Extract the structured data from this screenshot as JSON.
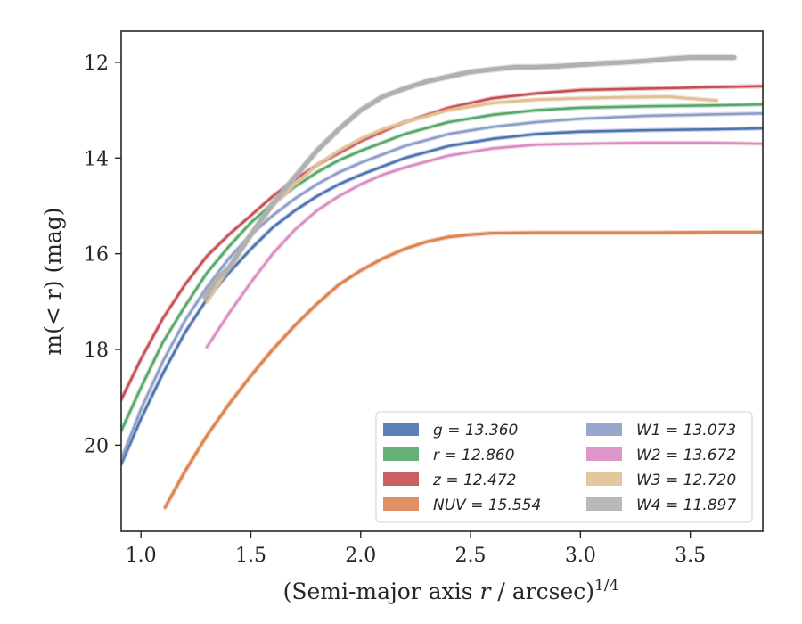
{
  "chart_data": {
    "type": "line",
    "xlabel": "(Semi-major axis r / arcsec)",
    "xlabel_italic_var": "r",
    "xlabel_exponent": "1/4",
    "ylabel": "m(< r) (mag)",
    "xlim": [
      0.91,
      3.83
    ],
    "ylim": [
      21.8,
      11.35
    ],
    "y_inverted": true,
    "x_ticks": [
      1.0,
      1.5,
      2.0,
      2.5,
      3.0,
      3.5
    ],
    "x_tick_labels": [
      "1.0",
      "1.5",
      "2.0",
      "2.5",
      "3.0",
      "3.5"
    ],
    "y_ticks": [
      12,
      14,
      16,
      18,
      20
    ],
    "y_tick_labels": [
      "12",
      "14",
      "16",
      "18",
      "20"
    ],
    "grid": false,
    "legend_position": "lower-right",
    "legend_columns": 2,
    "series": [
      {
        "name": "g = 13.360",
        "var": "g",
        "value": "13.360",
        "color": "#4c72b0",
        "width": 2.5,
        "x": [
          0.91,
          1.0,
          1.1,
          1.2,
          1.3,
          1.4,
          1.5,
          1.6,
          1.7,
          1.8,
          1.9,
          2.0,
          2.2,
          2.4,
          2.6,
          2.8,
          3.0,
          3.3,
          3.6,
          3.83
        ],
        "y": [
          20.4,
          19.45,
          18.5,
          17.65,
          16.95,
          16.4,
          15.9,
          15.45,
          15.1,
          14.8,
          14.55,
          14.35,
          14.0,
          13.75,
          13.6,
          13.5,
          13.45,
          13.42,
          13.4,
          13.38
        ]
      },
      {
        "name": "r = 12.860",
        "var": "r",
        "value": "12.860",
        "color": "#55a868",
        "width": 2.5,
        "x": [
          0.91,
          1.0,
          1.1,
          1.2,
          1.3,
          1.4,
          1.5,
          1.6,
          1.7,
          1.8,
          1.9,
          2.0,
          2.2,
          2.4,
          2.6,
          2.8,
          3.0,
          3.3,
          3.6,
          3.83
        ],
        "y": [
          19.7,
          18.8,
          17.85,
          17.1,
          16.4,
          15.85,
          15.35,
          14.95,
          14.6,
          14.3,
          14.05,
          13.85,
          13.5,
          13.25,
          13.1,
          13.0,
          12.95,
          12.92,
          12.9,
          12.88
        ]
      },
      {
        "name": "z = 12.472",
        "var": "z",
        "value": "12.472",
        "color": "#c44e52",
        "width": 2.5,
        "x": [
          0.91,
          1.0,
          1.1,
          1.2,
          1.3,
          1.4,
          1.5,
          1.6,
          1.7,
          1.8,
          1.9,
          2.0,
          2.2,
          2.4,
          2.6,
          2.8,
          3.0,
          3.3,
          3.6,
          3.83
        ],
        "y": [
          19.05,
          18.2,
          17.35,
          16.65,
          16.05,
          15.6,
          15.2,
          14.8,
          14.45,
          14.15,
          13.9,
          13.65,
          13.25,
          12.95,
          12.75,
          12.65,
          12.58,
          12.55,
          12.52,
          12.5
        ]
      },
      {
        "name": "NUV = 15.554",
        "var": "NUV",
        "value": "15.554",
        "color": "#dd8452",
        "width": 3,
        "x": [
          1.11,
          1.2,
          1.3,
          1.4,
          1.5,
          1.6,
          1.7,
          1.8,
          1.9,
          2.0,
          2.1,
          2.2,
          2.3,
          2.4,
          2.5,
          2.6,
          2.8,
          3.0,
          3.3,
          3.6,
          3.83
        ],
        "y": [
          21.3,
          20.55,
          19.8,
          19.15,
          18.55,
          18.0,
          17.5,
          17.05,
          16.65,
          16.35,
          16.1,
          15.9,
          15.75,
          15.65,
          15.6,
          15.57,
          15.56,
          15.56,
          15.56,
          15.55,
          15.55
        ]
      },
      {
        "name": "W1 = 13.073",
        "var": "W1",
        "value": "13.073",
        "color": "#8c9dc8",
        "width": 2.5,
        "x": [
          0.91,
          1.0,
          1.1,
          1.2,
          1.3,
          1.4,
          1.5,
          1.6,
          1.7,
          1.8,
          1.9,
          2.0,
          2.2,
          2.4,
          2.6,
          2.8,
          3.0,
          3.3,
          3.6,
          3.83
        ],
        "y": [
          20.3,
          19.25,
          18.25,
          17.4,
          16.7,
          16.1,
          15.6,
          15.2,
          14.85,
          14.55,
          14.3,
          14.1,
          13.75,
          13.5,
          13.35,
          13.25,
          13.18,
          13.12,
          13.09,
          13.07
        ]
      },
      {
        "name": "W2 = 13.672",
        "var": "W2",
        "value": "13.672",
        "color": "#da8bc3",
        "width": 2.5,
        "x": [
          1.3,
          1.4,
          1.5,
          1.6,
          1.7,
          1.8,
          1.9,
          2.0,
          2.1,
          2.2,
          2.4,
          2.6,
          2.8,
          3.0,
          3.3,
          3.6,
          3.83
        ],
        "y": [
          17.95,
          17.25,
          16.6,
          16.0,
          15.5,
          15.1,
          14.8,
          14.55,
          14.35,
          14.2,
          13.95,
          13.8,
          13.72,
          13.7,
          13.68,
          13.68,
          13.7
        ]
      },
      {
        "name": "W3 = 12.720",
        "var": "W3",
        "value": "12.720",
        "color": "#e1c095",
        "width": 3,
        "x": [
          1.3,
          1.4,
          1.5,
          1.6,
          1.7,
          1.8,
          1.9,
          2.0,
          2.1,
          2.2,
          2.4,
          2.6,
          2.8,
          3.0,
          3.2,
          3.4,
          3.62
        ],
        "y": [
          17.0,
          16.3,
          15.6,
          15.0,
          14.55,
          14.15,
          13.85,
          13.6,
          13.4,
          13.25,
          13.0,
          12.85,
          12.78,
          12.75,
          12.73,
          12.72,
          12.8
        ]
      },
      {
        "name": "W4 = 11.897",
        "var": "W4",
        "value": "11.897",
        "color": "#b0b0b0",
        "width": 5,
        "x": [
          1.29,
          1.35,
          1.4,
          1.5,
          1.6,
          1.7,
          1.8,
          1.9,
          2.0,
          2.1,
          2.2,
          2.3,
          2.4,
          2.5,
          2.6,
          2.7,
          2.8,
          2.9,
          3.0,
          3.1,
          3.2,
          3.3,
          3.4,
          3.5,
          3.6,
          3.7
        ],
        "y": [
          16.9,
          16.5,
          16.3,
          15.6,
          14.95,
          14.4,
          13.85,
          13.4,
          13.0,
          12.72,
          12.55,
          12.4,
          12.3,
          12.2,
          12.15,
          12.1,
          12.1,
          12.08,
          12.05,
          12.02,
          12.0,
          11.97,
          11.93,
          11.9,
          11.9,
          11.9
        ]
      }
    ]
  }
}
